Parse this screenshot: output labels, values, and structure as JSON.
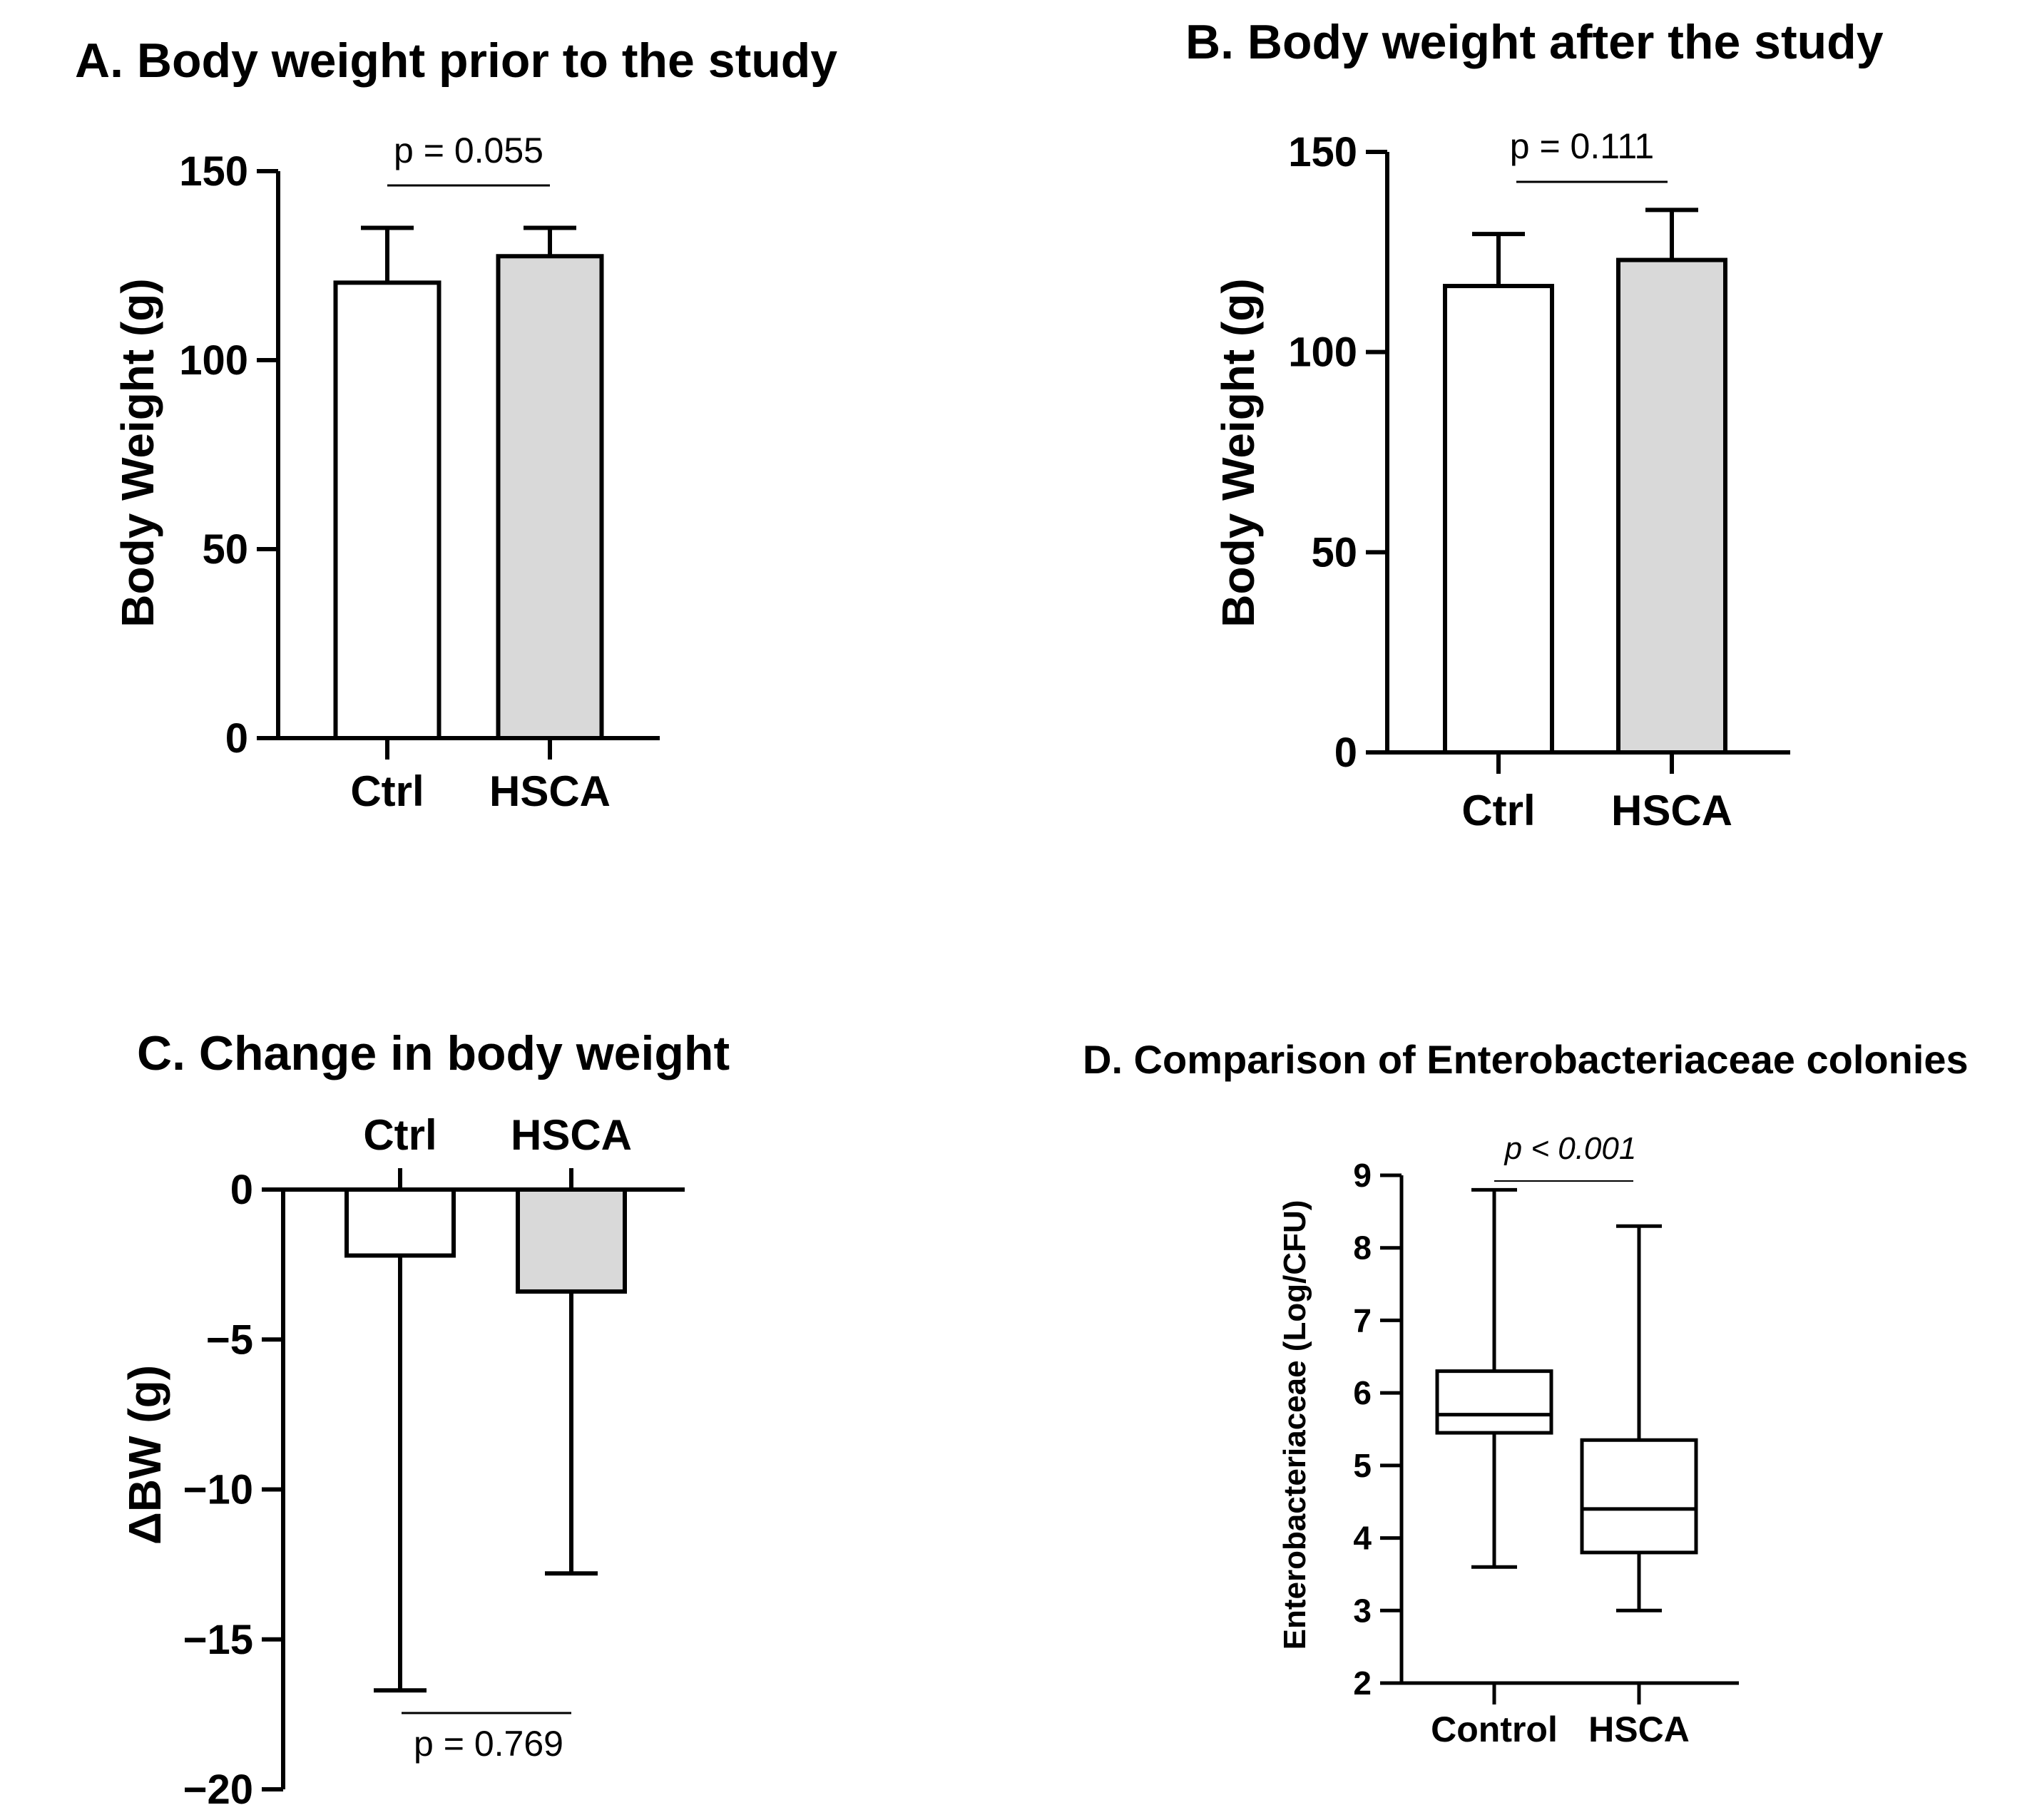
{
  "chart_data": [
    {
      "id": "A",
      "type": "bar",
      "title": "A. Body weight prior to the study",
      "ylabel": "Body Weight (g)",
      "xlabel": "",
      "ylim": [
        0,
        150
      ],
      "yticks": [
        0,
        50,
        100,
        150
      ],
      "ytick_labels": [
        "0",
        "50",
        "100",
        "150"
      ],
      "categories": [
        "Ctrl",
        "HSCA"
      ],
      "values": [
        120.5,
        127.5
      ],
      "error_upper": [
        135,
        135
      ],
      "fills": [
        "#ffffff",
        "#d9d9d9"
      ],
      "pvalue_label": "p = 0.055",
      "grid": false
    },
    {
      "id": "B",
      "type": "bar",
      "title": "B. Body weight after the study",
      "ylabel": "Body Weight (g)",
      "xlabel": "",
      "ylim": [
        0,
        150
      ],
      "yticks": [
        0,
        50,
        100,
        150
      ],
      "ytick_labels": [
        "0",
        "50",
        "100",
        "150"
      ],
      "categories": [
        "Ctrl",
        "HSCA"
      ],
      "values": [
        116.5,
        123
      ],
      "error_upper": [
        129.5,
        135.5
      ],
      "fills": [
        "#ffffff",
        "#d9d9d9"
      ],
      "pvalue_label": "p = 0.111",
      "grid": false
    },
    {
      "id": "C",
      "type": "bar",
      "title": "C. Change in body weight",
      "ylabel": "ΔBW (g)",
      "xlabel": "",
      "ylim": [
        -20,
        0
      ],
      "yticks": [
        0,
        -5,
        -10,
        -15,
        -20
      ],
      "ytick_labels": [
        "0",
        "−5",
        "−10",
        "−15",
        "−20"
      ],
      "categories": [
        "Ctrl",
        "HSCA"
      ],
      "values": [
        -2.2,
        -3.4
      ],
      "error_lower": [
        -16.7,
        -12.8
      ],
      "fills": [
        "#ffffff",
        "#d9d9d9"
      ],
      "pvalue_label": "p = 0.769",
      "grid": false
    },
    {
      "id": "D",
      "type": "box",
      "title": "D. Comparison of Enterobacteriaceae colonies",
      "ylabel": "Enterobacteriaceae (Log/CFU)",
      "xlabel": "",
      "ylim": [
        2,
        9
      ],
      "yticks": [
        2,
        3,
        4,
        5,
        6,
        7,
        8,
        9
      ],
      "ytick_labels": [
        "2",
        "3",
        "4",
        "5",
        "6",
        "7",
        "8",
        "9"
      ],
      "categories": [
        "Control",
        "HSCA"
      ],
      "boxes": [
        {
          "min": 3.6,
          "q1": 5.45,
          "median": 5.7,
          "q3": 6.3,
          "max": 8.8
        },
        {
          "min": 3.0,
          "q1": 3.8,
          "median": 4.4,
          "q3": 5.35,
          "max": 8.3
        }
      ],
      "pvalue_label": "p < 0.001",
      "grid": false
    }
  ]
}
